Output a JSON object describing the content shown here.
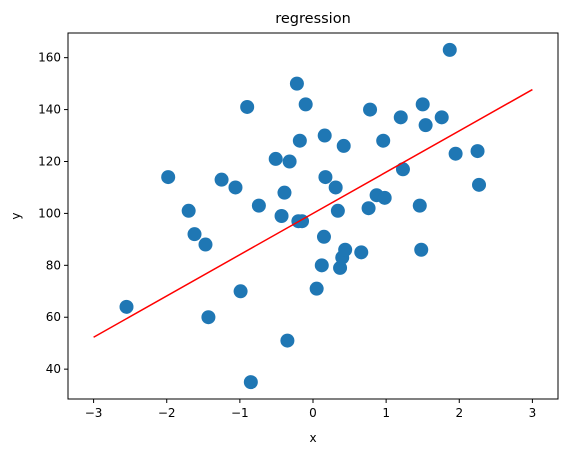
{
  "chart_data": {
    "type": "scatter",
    "title": "regression",
    "xlabel": "x",
    "ylabel": "y",
    "xlim": [
      -3.35,
      3.35
    ],
    "ylim": [
      28.5,
      169.5
    ],
    "xticks": [
      -3,
      -2,
      -1,
      0,
      1,
      2,
      3
    ],
    "yticks": [
      40,
      60,
      80,
      100,
      120,
      140,
      160
    ],
    "grid": false,
    "points_color": "#1f77b4",
    "line_color": "#ff0000",
    "points": [
      {
        "x": -2.55,
        "y": 64
      },
      {
        "x": -1.98,
        "y": 114
      },
      {
        "x": -1.7,
        "y": 101
      },
      {
        "x": -1.62,
        "y": 92
      },
      {
        "x": -1.47,
        "y": 88
      },
      {
        "x": -1.43,
        "y": 60
      },
      {
        "x": -1.25,
        "y": 113
      },
      {
        "x": -1.06,
        "y": 110
      },
      {
        "x": -0.99,
        "y": 70
      },
      {
        "x": -0.9,
        "y": 141
      },
      {
        "x": -0.85,
        "y": 35
      },
      {
        "x": -0.74,
        "y": 103
      },
      {
        "x": -0.51,
        "y": 121
      },
      {
        "x": -0.43,
        "y": 99
      },
      {
        "x": -0.39,
        "y": 108
      },
      {
        "x": -0.35,
        "y": 51
      },
      {
        "x": -0.32,
        "y": 120
      },
      {
        "x": -0.22,
        "y": 150
      },
      {
        "x": -0.2,
        "y": 97
      },
      {
        "x": -0.18,
        "y": 128
      },
      {
        "x": -0.15,
        "y": 97
      },
      {
        "x": -0.1,
        "y": 142
      },
      {
        "x": 0.05,
        "y": 71
      },
      {
        "x": 0.12,
        "y": 80
      },
      {
        "x": 0.15,
        "y": 91
      },
      {
        "x": 0.16,
        "y": 130
      },
      {
        "x": 0.17,
        "y": 114
      },
      {
        "x": 0.31,
        "y": 110
      },
      {
        "x": 0.34,
        "y": 101
      },
      {
        "x": 0.37,
        "y": 79
      },
      {
        "x": 0.4,
        "y": 83
      },
      {
        "x": 0.42,
        "y": 126
      },
      {
        "x": 0.44,
        "y": 86
      },
      {
        "x": 0.66,
        "y": 85
      },
      {
        "x": 0.76,
        "y": 102
      },
      {
        "x": 0.78,
        "y": 140
      },
      {
        "x": 0.87,
        "y": 107
      },
      {
        "x": 0.96,
        "y": 128
      },
      {
        "x": 0.98,
        "y": 106
      },
      {
        "x": 1.2,
        "y": 137
      },
      {
        "x": 1.23,
        "y": 117
      },
      {
        "x": 1.46,
        "y": 103
      },
      {
        "x": 1.48,
        "y": 86
      },
      {
        "x": 1.5,
        "y": 142
      },
      {
        "x": 1.54,
        "y": 134
      },
      {
        "x": 1.76,
        "y": 137
      },
      {
        "x": 1.87,
        "y": 163
      },
      {
        "x": 1.95,
        "y": 123
      },
      {
        "x": 2.25,
        "y": 124
      },
      {
        "x": 2.27,
        "y": 111
      }
    ],
    "regression_line": [
      {
        "x": -3,
        "y": 52.3
      },
      {
        "x": 3,
        "y": 147.7
      }
    ]
  }
}
